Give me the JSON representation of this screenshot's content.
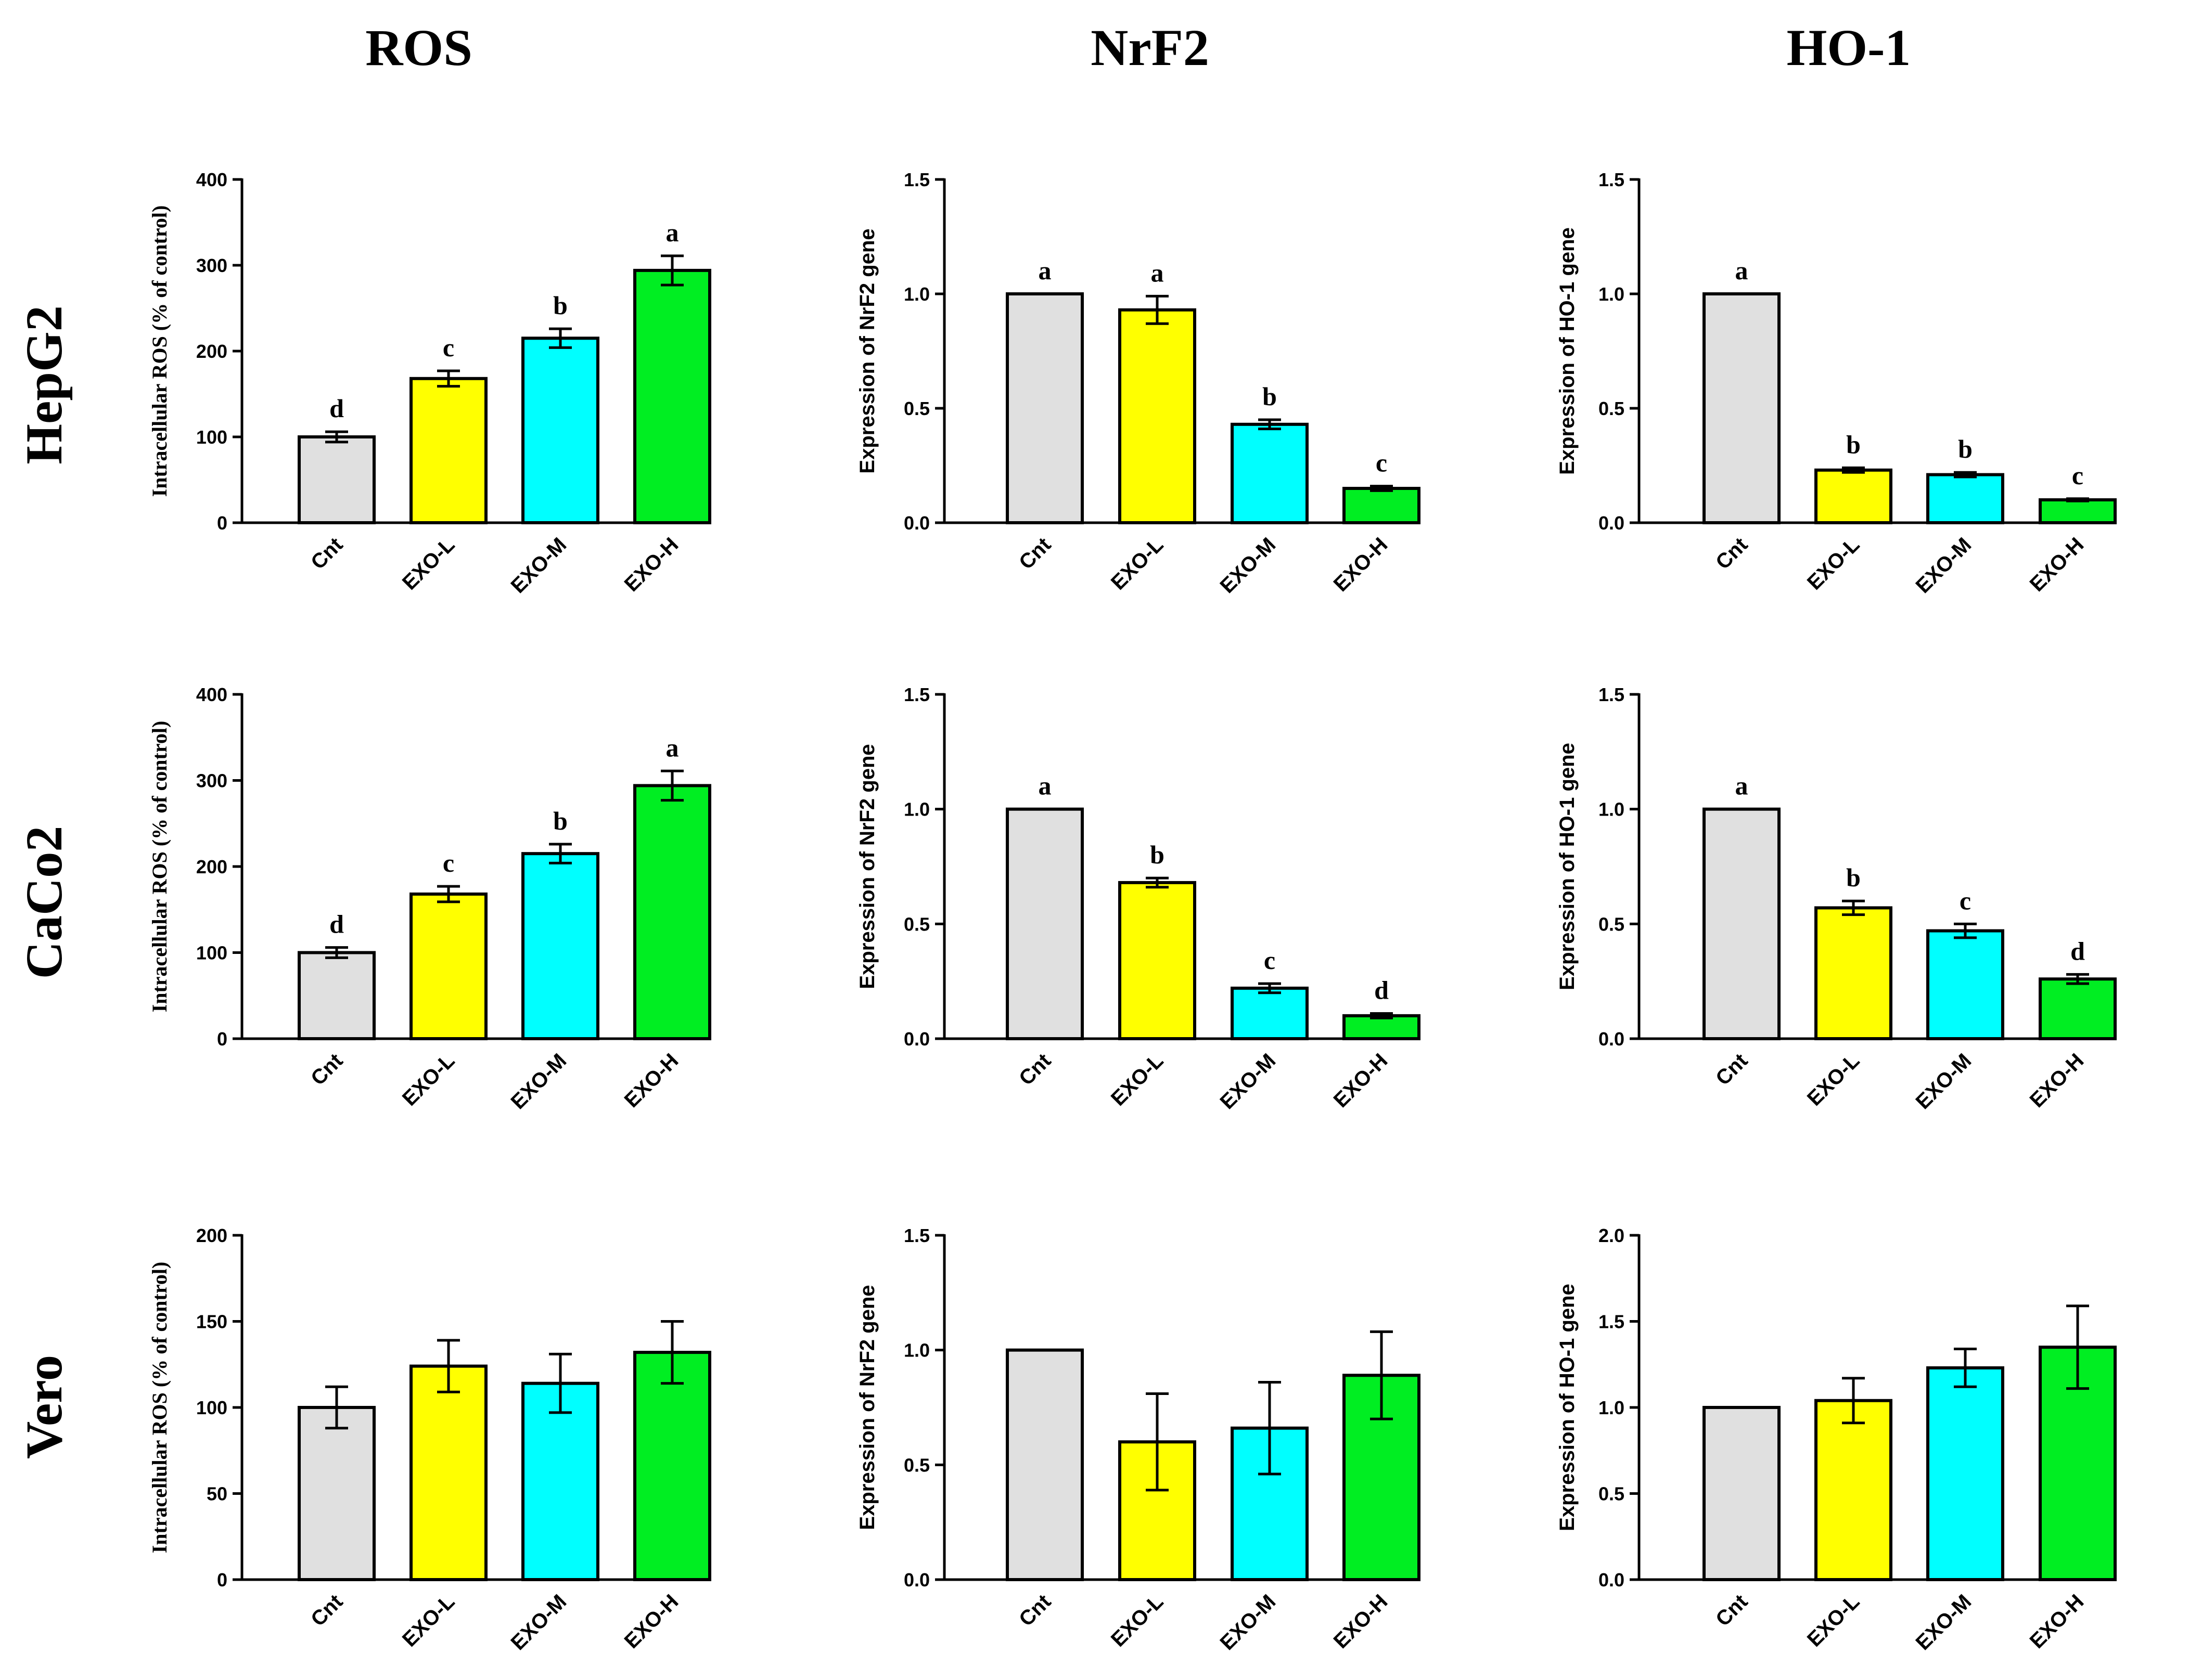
{
  "columns": [
    "ROS",
    "NrF2",
    "HO-1"
  ],
  "rows": [
    "HepG2",
    "CaCo2",
    "Vero"
  ],
  "colors": {
    "Cnt": "#e0e0e0",
    "EXO-L": "#ffff00",
    "EXO-M": "#00ffff",
    "EXO-H": "#00ee22",
    "axis": "#000000"
  },
  "chart_data": [
    {
      "id": "hepg2-ros",
      "type": "bar",
      "row": "HepG2",
      "column": "ROS",
      "ylabel": "Intracellular ROS (% of control)",
      "ylim": [
        0,
        400
      ],
      "yticks": [
        0,
        100,
        200,
        300,
        400
      ],
      "tick_decimals": 0,
      "categories": [
        "Cnt",
        "EXO-L",
        "EXO-M",
        "EXO-H"
      ],
      "values": [
        100,
        168,
        215,
        294
      ],
      "errors": [
        6,
        9,
        11,
        17
      ],
      "significance": [
        "d",
        "c",
        "b",
        "a"
      ]
    },
    {
      "id": "hepg2-nrf2",
      "type": "bar",
      "row": "HepG2",
      "column": "NrF2",
      "ylabel": "Expression of NrF2 gene",
      "ylim": [
        0,
        1.5
      ],
      "yticks": [
        0,
        0.5,
        1.0,
        1.5
      ],
      "tick_decimals": 1,
      "categories": [
        "Cnt",
        "EXO-L",
        "EXO-M",
        "EXO-H"
      ],
      "values": [
        1.0,
        0.93,
        0.43,
        0.15
      ],
      "errors": [
        0,
        0.06,
        0.02,
        0.01
      ],
      "significance": [
        "a",
        "a",
        "b",
        "c"
      ]
    },
    {
      "id": "hepg2-ho1",
      "type": "bar",
      "row": "HepG2",
      "column": "HO-1",
      "ylabel": "Expression of HO-1 gene",
      "ylim": [
        0,
        1.5
      ],
      "yticks": [
        0,
        0.5,
        1.0,
        1.5
      ],
      "tick_decimals": 1,
      "categories": [
        "Cnt",
        "EXO-L",
        "EXO-M",
        "EXO-H"
      ],
      "values": [
        1.0,
        0.23,
        0.21,
        0.1
      ],
      "errors": [
        0,
        0.01,
        0.01,
        0.005
      ],
      "significance": [
        "a",
        "b",
        "b",
        "c"
      ]
    },
    {
      "id": "caco2-ros",
      "type": "bar",
      "row": "CaCo2",
      "column": "ROS",
      "ylabel": "Intracellular ROS (% of control)",
      "ylim": [
        0,
        400
      ],
      "yticks": [
        0,
        100,
        200,
        300,
        400
      ],
      "tick_decimals": 0,
      "categories": [
        "Cnt",
        "EXO-L",
        "EXO-M",
        "EXO-H"
      ],
      "values": [
        100,
        168,
        215,
        294
      ],
      "errors": [
        6,
        9,
        11,
        17
      ],
      "significance": [
        "d",
        "c",
        "b",
        "a"
      ]
    },
    {
      "id": "caco2-nrf2",
      "type": "bar",
      "row": "CaCo2",
      "column": "NrF2",
      "ylabel": "Expression of NrF2 gene",
      "ylim": [
        0,
        1.5
      ],
      "yticks": [
        0,
        0.5,
        1.0,
        1.5
      ],
      "tick_decimals": 1,
      "categories": [
        "Cnt",
        "EXO-L",
        "EXO-M",
        "EXO-H"
      ],
      "values": [
        1.0,
        0.68,
        0.22,
        0.1
      ],
      "errors": [
        0,
        0.02,
        0.02,
        0.01
      ],
      "significance": [
        "a",
        "b",
        "c",
        "d"
      ]
    },
    {
      "id": "caco2-ho1",
      "type": "bar",
      "row": "CaCo2",
      "column": "HO-1",
      "ylabel": "Expression of HO-1 gene",
      "ylim": [
        0,
        1.5
      ],
      "yticks": [
        0,
        0.5,
        1.0,
        1.5
      ],
      "tick_decimals": 1,
      "categories": [
        "Cnt",
        "EXO-L",
        "EXO-M",
        "EXO-H"
      ],
      "values": [
        1.0,
        0.57,
        0.47,
        0.26
      ],
      "errors": [
        0,
        0.03,
        0.03,
        0.02
      ],
      "significance": [
        "a",
        "b",
        "c",
        "d"
      ]
    },
    {
      "id": "vero-ros",
      "type": "bar",
      "row": "Vero",
      "column": "ROS",
      "ylabel": "Intracellular ROS (% of control)",
      "ylim": [
        0,
        200
      ],
      "yticks": [
        0,
        50,
        100,
        150,
        200
      ],
      "tick_decimals": 0,
      "categories": [
        "Cnt",
        "EXO-L",
        "EXO-M",
        "EXO-H"
      ],
      "values": [
        100,
        124,
        114,
        132
      ],
      "errors": [
        12,
        15,
        17,
        18
      ],
      "significance": [
        "",
        "",
        "",
        ""
      ]
    },
    {
      "id": "vero-nrf2",
      "type": "bar",
      "row": "Vero",
      "column": "NrF2",
      "ylabel": "Expression of NrF2 gene",
      "ylim": [
        0,
        1.5
      ],
      "yticks": [
        0,
        0.5,
        1.0,
        1.5
      ],
      "tick_decimals": 1,
      "categories": [
        "Cnt",
        "EXO-L",
        "EXO-M",
        "EXO-H"
      ],
      "values": [
        1.0,
        0.6,
        0.66,
        0.89
      ],
      "errors": [
        0,
        0.21,
        0.2,
        0.19
      ],
      "significance": [
        "",
        "",
        "",
        ""
      ]
    },
    {
      "id": "vero-ho1",
      "type": "bar",
      "row": "Vero",
      "column": "HO-1",
      "ylabel": "Expression of HO-1 gene",
      "ylim": [
        0,
        2.0
      ],
      "yticks": [
        0,
        0.5,
        1.0,
        1.5,
        2.0
      ],
      "tick_decimals": 1,
      "categories": [
        "Cnt",
        "EXO-L",
        "EXO-M",
        "EXO-H"
      ],
      "values": [
        1.0,
        1.04,
        1.23,
        1.35
      ],
      "errors": [
        0,
        0.13,
        0.11,
        0.24
      ],
      "significance": [
        "",
        "",
        "",
        ""
      ]
    }
  ]
}
